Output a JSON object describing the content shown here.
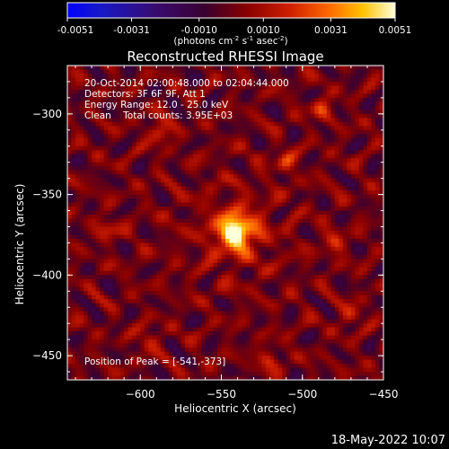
{
  "chart_data": {
    "type": "heatmap",
    "title": "Reconstructed RHESSI Image",
    "xlabel": "Heliocentric X (arcsec)",
    "ylabel": "Heliocentric Y (arcsec)",
    "xlim": [
      -645,
      -450
    ],
    "ylim": [
      -465,
      -270
    ],
    "xticks": [
      -600,
      -550,
      -500,
      -450
    ],
    "yticks": [
      -300,
      -350,
      -400,
      -450
    ],
    "colorbar": {
      "range": [
        -0.0051,
        0.0051
      ],
      "ticks": [
        "-0.0051",
        "-0.0031",
        "-0.0010",
        "0.0010",
        "0.0031",
        "0.0051"
      ],
      "label_prefix": "(photons cm",
      "label_exp1": "-2",
      "label_mid": " s",
      "label_exp2": "-1",
      "label_mid2": " asec",
      "label_exp3": "-2",
      "label_suffix": ")",
      "colormap": "Rainbow-like (blue-black-purple-red-yellow-white)"
    },
    "annotations": {
      "time_range": "20-Oct-2014 02:00:48.000 to 02:04:44.000",
      "detectors": "Detectors: 3F 6F 9F, Att 1",
      "energy": "Energy Range: 12.0 - 25.0 keV",
      "clean": "Clean    Total counts: 3.95E+03",
      "peak": "Position of Peak = [-541,-373]"
    },
    "peak_position": [
      -541,
      -373
    ],
    "secondary_sources": [
      {
        "x": -588,
        "y": -311,
        "value": 0.003
      },
      {
        "x": -488,
        "y": -297,
        "value": 0.0025
      },
      {
        "x": -510,
        "y": -330,
        "value": 0.0024
      },
      {
        "x": -480,
        "y": -380,
        "value": 0.0023
      },
      {
        "x": -620,
        "y": -372,
        "value": 0.0022
      },
      {
        "x": -520,
        "y": -452,
        "value": 0.0022
      },
      {
        "x": -470,
        "y": -425,
        "value": 0.0021
      },
      {
        "x": -595,
        "y": -440,
        "value": 0.002
      }
    ],
    "grid": false
  },
  "footer": {
    "timestamp": "18-May-2022 10:07"
  }
}
